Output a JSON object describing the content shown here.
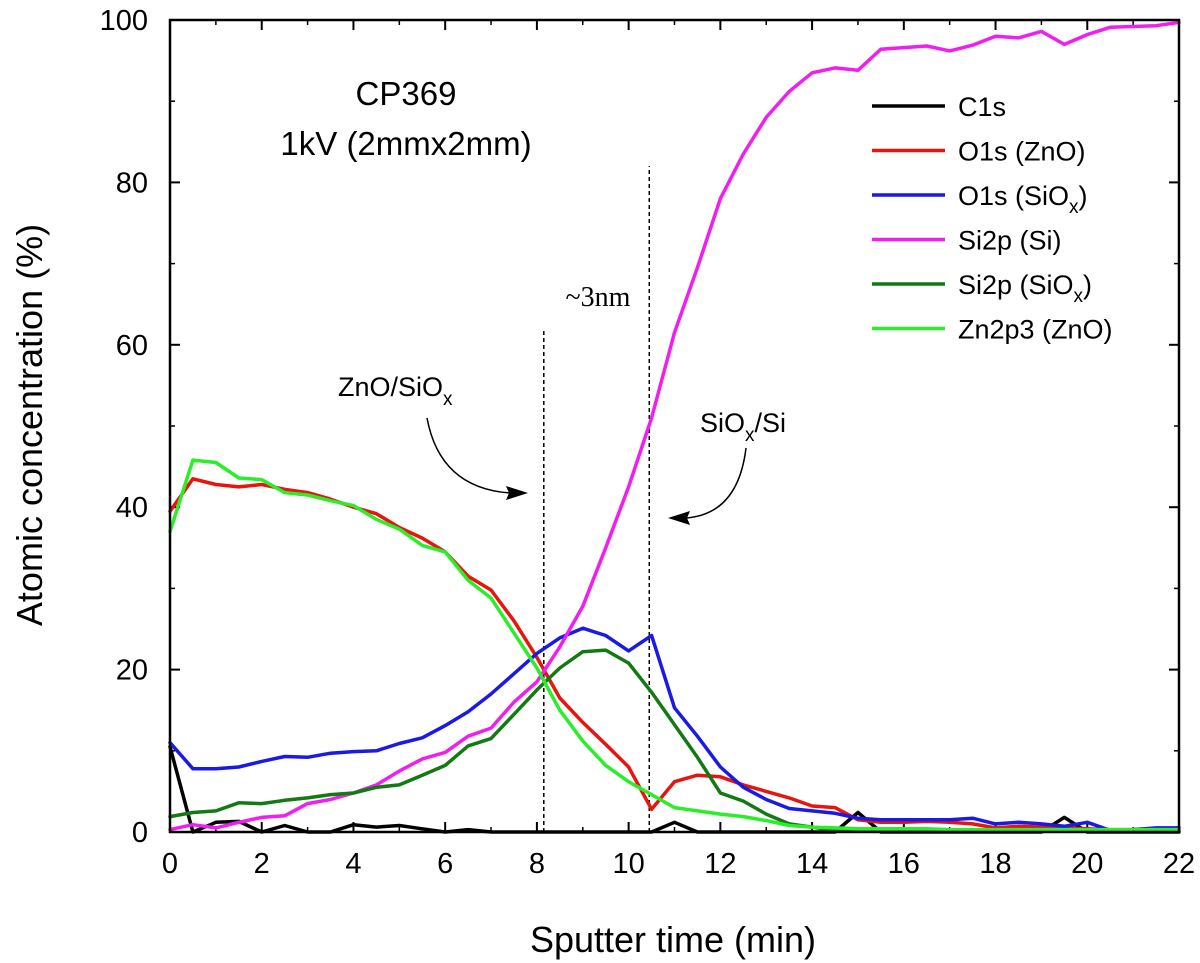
{
  "chart_data": {
    "type": "line",
    "title": "",
    "xlabel": "Sputter time (min)",
    "ylabel": "Atomic concentration (%)",
    "xlim": [
      0,
      22
    ],
    "ylim": [
      0,
      100
    ],
    "xticks": [
      0,
      2,
      4,
      6,
      8,
      10,
      12,
      14,
      16,
      18,
      20,
      22
    ],
    "yticks": [
      0,
      20,
      40,
      60,
      80,
      100
    ],
    "grid": false,
    "legend_position": "top-right",
    "annotations": {
      "sample": "CP369",
      "conditions": "1kV (2mmx2mm)",
      "thickness": "~3nm",
      "interface1_main": "ZnO/SiO",
      "interface1_sub": "x",
      "interface2_main1": "SiO",
      "interface2_sub": "x",
      "interface2_main2": "/Si"
    },
    "vlines": [
      {
        "x": 8.15,
        "y_top": 62
      },
      {
        "x": 10.45,
        "y_top": 82
      }
    ],
    "series": [
      {
        "name": "C1s",
        "label_main": "C1s",
        "label_sub": "",
        "label_end": "",
        "color": "#000000",
        "x": [
          0,
          0.5,
          1,
          1.5,
          2,
          2.5,
          3,
          3.5,
          4,
          4.5,
          5,
          5.5,
          6,
          6.5,
          7,
          7.5,
          8,
          8.5,
          9,
          9.5,
          10,
          10.5,
          11,
          11.5,
          12,
          12.5,
          13,
          13.5,
          14,
          14.5,
          15,
          15.5,
          16,
          16.5,
          17,
          17.5,
          18,
          18.5,
          19,
          19.5,
          20,
          20.5,
          21,
          21.5,
          22
        ],
        "values": [
          10.5,
          0.0,
          1.2,
          1.3,
          0.0,
          0.8,
          0.0,
          0.0,
          0.9,
          0.6,
          0.8,
          0.4,
          0.0,
          0.3,
          0.0,
          0.0,
          0.0,
          0.0,
          0.0,
          0.0,
          0.0,
          0.0,
          1.2,
          0.0,
          0.0,
          0.0,
          0.0,
          0.0,
          0.0,
          0.0,
          2.4,
          0.0,
          0.0,
          0.0,
          0.0,
          0.0,
          0.0,
          0.0,
          0.0,
          1.8,
          0.0,
          0.0,
          0.0,
          0.0,
          0.0
        ]
      },
      {
        "name": "O1s (ZnO)",
        "label_main": "O1s (ZnO)",
        "label_sub": "",
        "label_end": "",
        "color": "#e8140f",
        "x": [
          0,
          0.5,
          1,
          1.5,
          2,
          2.5,
          3,
          3.5,
          4,
          4.5,
          5,
          5.5,
          6,
          6.5,
          7,
          7.5,
          8,
          8.5,
          9,
          9.5,
          10,
          10.5,
          11,
          11.5,
          12,
          12.5,
          13,
          13.5,
          14,
          14.5,
          15,
          15.5,
          16,
          16.5,
          17,
          17.5,
          18,
          18.5,
          19,
          19.5,
          20,
          20.5,
          21,
          21.5,
          22
        ],
        "values": [
          39.5,
          43.5,
          42.8,
          42.5,
          42.8,
          42.2,
          41.8,
          41.0,
          40.0,
          39.2,
          37.5,
          36.2,
          34.5,
          31.5,
          29.8,
          26.0,
          21.5,
          16.5,
          13.5,
          10.8,
          8.0,
          2.8,
          6.2,
          7.0,
          6.8,
          5.8,
          5.0,
          4.2,
          3.2,
          3.0,
          1.5,
          1.2,
          1.2,
          1.3,
          1.2,
          1.0,
          0.5,
          0.7,
          0.6,
          0.5,
          0.4,
          0.3,
          0.3,
          0.4,
          0.3
        ]
      },
      {
        "name": "O1s (SiOx)",
        "label_main": "O1s (SiO",
        "label_sub": "x",
        "label_end": ")",
        "color": "#1a1ae6",
        "x": [
          0,
          0.5,
          1,
          1.5,
          2,
          2.5,
          3,
          3.5,
          4,
          4.5,
          5,
          5.5,
          6,
          6.5,
          7,
          7.5,
          8,
          8.5,
          9,
          9.5,
          10,
          10.5,
          11,
          11.5,
          12,
          12.5,
          13,
          13.5,
          14,
          14.5,
          15,
          15.5,
          16,
          16.5,
          17,
          17.5,
          18,
          18.5,
          19,
          19.5,
          20,
          20.5,
          21,
          21.5,
          22
        ],
        "values": [
          11.0,
          7.8,
          7.8,
          8.0,
          8.7,
          9.3,
          9.2,
          9.7,
          9.9,
          10.0,
          10.9,
          11.6,
          13.1,
          14.8,
          17.0,
          19.5,
          22.0,
          23.9,
          25.1,
          24.2,
          22.3,
          24.2,
          15.3,
          11.8,
          8.0,
          5.5,
          4.0,
          2.9,
          2.6,
          2.3,
          1.7,
          1.5,
          1.5,
          1.5,
          1.5,
          1.7,
          1.0,
          1.2,
          1.0,
          0.7,
          1.2,
          0.2,
          0.3,
          0.5,
          0.5
        ]
      },
      {
        "name": "Si2p (Si)",
        "label_main": "Si2p (Si)",
        "label_sub": "",
        "label_end": "",
        "color": "#f01ef0",
        "x": [
          0,
          0.5,
          1,
          1.5,
          2,
          2.5,
          3,
          3.5,
          4,
          4.5,
          5,
          5.5,
          6,
          6.5,
          7,
          7.5,
          8,
          8.5,
          9,
          9.5,
          10,
          10.5,
          11,
          11.5,
          12,
          12.5,
          13,
          13.5,
          14,
          14.5,
          15,
          15.5,
          16,
          16.5,
          17,
          17.5,
          18,
          18.5,
          19,
          19.5,
          20,
          20.5,
          21,
          21.5,
          22
        ],
        "values": [
          0.3,
          0.9,
          0.5,
          1.2,
          1.8,
          2.0,
          3.5,
          4.0,
          4.8,
          5.8,
          7.5,
          9.0,
          9.8,
          11.8,
          12.8,
          16.0,
          18.5,
          22.8,
          27.8,
          35.0,
          42.5,
          51.0,
          61.5,
          69.5,
          78.0,
          83.5,
          88.0,
          91.2,
          93.5,
          94.1,
          93.8,
          96.4,
          96.6,
          96.8,
          96.2,
          96.9,
          98.0,
          97.8,
          98.6,
          97.0,
          98.2,
          99.1,
          99.2,
          99.3,
          99.7
        ]
      },
      {
        "name": "Si2p (SiOx)",
        "label_main": "Si2p (SiO",
        "label_sub": "x",
        "label_end": ")",
        "color": "#127a12",
        "x": [
          0,
          0.5,
          1,
          1.5,
          2,
          2.5,
          3,
          3.5,
          4,
          4.5,
          5,
          5.5,
          6,
          6.5,
          7,
          7.5,
          8,
          8.5,
          9,
          9.5,
          10,
          10.5,
          11,
          11.5,
          12,
          12.5,
          13,
          13.5,
          14,
          14.5,
          15,
          15.5,
          16,
          16.5,
          17,
          17.5,
          18,
          18.5,
          19,
          19.5,
          20,
          20.5,
          21,
          21.5,
          22
        ],
        "values": [
          1.9,
          2.4,
          2.6,
          3.6,
          3.5,
          3.9,
          4.2,
          4.6,
          4.8,
          5.5,
          5.8,
          7.0,
          8.2,
          10.6,
          11.5,
          14.5,
          17.5,
          20.2,
          22.2,
          22.4,
          20.8,
          17.2,
          13.2,
          9.2,
          4.8,
          3.8,
          2.2,
          1.0,
          0.6,
          0.2,
          0.2,
          0.3,
          0.3,
          0.3,
          0.2,
          0.2,
          0.2,
          0.2,
          0.1,
          0.1,
          0.1,
          0.1,
          0.1,
          0.1,
          0.1
        ]
      },
      {
        "name": "Zn2p3 (ZnO)",
        "label_main": "Zn2p3 (ZnO)",
        "label_sub": "",
        "label_end": "",
        "color": "#2aee2a",
        "x": [
          0,
          0.5,
          1,
          1.5,
          2,
          2.5,
          3,
          3.5,
          4,
          4.5,
          5,
          5.5,
          6,
          6.5,
          7,
          7.5,
          8,
          8.5,
          9,
          9.5,
          10,
          10.5,
          11,
          11.5,
          12,
          12.5,
          13,
          13.5,
          14,
          14.5,
          15,
          15.5,
          16,
          16.5,
          17,
          17.5,
          18,
          18.5,
          19,
          19.5,
          20,
          20.5,
          21,
          21.5,
          22
        ],
        "values": [
          37.0,
          45.8,
          45.5,
          43.6,
          43.4,
          41.8,
          41.5,
          40.8,
          40.2,
          38.5,
          37.3,
          35.3,
          34.5,
          31.0,
          28.8,
          24.5,
          20.2,
          15.0,
          11.2,
          8.2,
          6.2,
          4.6,
          3.0,
          2.6,
          2.2,
          1.9,
          1.4,
          0.8,
          0.6,
          0.5,
          0.4,
          0.4,
          0.4,
          0.4,
          0.3,
          0.3,
          0.3,
          0.3,
          0.3,
          0.3,
          0.3,
          0.3,
          0.3,
          0.3,
          0.3
        ]
      }
    ]
  }
}
